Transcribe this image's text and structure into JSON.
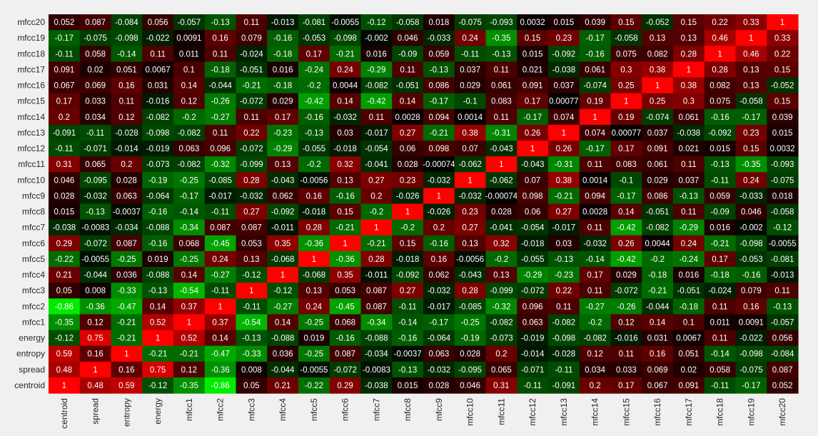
{
  "chart_data": {
    "type": "heatmap",
    "title": "",
    "colormap": {
      "negative": "#00ff00",
      "zero": "#000000",
      "positive": "#ff0000"
    },
    "value_limits": [
      -1,
      1
    ],
    "x_labels": [
      "centroid",
      "spread",
      "entropy",
      "energy",
      "mfcc1",
      "mfcc2",
      "mfcc3",
      "mfcc4",
      "mfcc5",
      "mfcc6",
      "mfcc7",
      "mfcc8",
      "mfcc9",
      "mfcc10",
      "mfcc11",
      "mfcc12",
      "mfcc13",
      "mfcc14",
      "mfcc15",
      "mfcc16",
      "mfcc17",
      "mfcc18",
      "mfcc19",
      "mfcc20"
    ],
    "y_labels": [
      "mfcc20",
      "mfcc19",
      "mfcc18",
      "mfcc17",
      "mfcc16",
      "mfcc15",
      "mfcc14",
      "mfcc13",
      "mfcc12",
      "mfcc11",
      "mfcc10",
      "mfcc9",
      "mfcc8",
      "mfcc7",
      "mfcc6",
      "mfcc5",
      "mfcc4",
      "mfcc3",
      "mfcc2",
      "mfcc1",
      "energy",
      "entropy",
      "spread",
      "centroid"
    ],
    "values": [
      [
        "0.052",
        "0.087",
        "-0.084",
        "0.056",
        "-0.057",
        "-0.13",
        "0.11",
        "-0.013",
        "-0.081",
        "-0.0055",
        "-0.12",
        "-0.058",
        "0.018",
        "-0.075",
        "-0.093",
        "0.0032",
        "0.015",
        "0.039",
        "0.15",
        "-0.052",
        "0.15",
        "0.22",
        "0.33",
        "1"
      ],
      [
        "-0.17",
        "-0.075",
        "-0.098",
        "-0.022",
        "0.0091",
        "0.16",
        "0.079",
        "-0.16",
        "-0.053",
        "-0.098",
        "-0.002",
        "0.046",
        "-0.033",
        "0.24",
        "-0.35",
        "0.15",
        "0.23",
        "-0.17",
        "-0.058",
        "0.13",
        "0.13",
        "0.46",
        "1",
        "0.33"
      ],
      [
        "-0.11",
        "0.058",
        "-0.14",
        "0.11",
        "0.011",
        "0.11",
        "-0.024",
        "-0.18",
        "0.17",
        "-0.21",
        "0.016",
        "-0.09",
        "0.059",
        "-0.11",
        "-0.13",
        "0.015",
        "-0.092",
        "-0.16",
        "0.075",
        "0.082",
        "0.28",
        "1",
        "0.46",
        "0.22"
      ],
      [
        "0.091",
        "0.02",
        "0.051",
        "0.0067",
        "0.1",
        "-0.18",
        "-0.051",
        "0.016",
        "-0.24",
        "0.24",
        "-0.29",
        "0.11",
        "-0.13",
        "0.037",
        "0.11",
        "0.021",
        "-0.038",
        "0.061",
        "0.3",
        "0.38",
        "1",
        "0.28",
        "0.13",
        "0.15"
      ],
      [
        "0.067",
        "0.069",
        "0.16",
        "0.031",
        "0.14",
        "-0.044",
        "-0.21",
        "-0.18",
        "-0.2",
        "0.0044",
        "-0.082",
        "-0.051",
        "0.086",
        "0.029",
        "0.061",
        "0.091",
        "0.037",
        "-0.074",
        "0.25",
        "1",
        "0.38",
        "0.082",
        "0.13",
        "-0.052"
      ],
      [
        "0.17",
        "0.033",
        "0.11",
        "-0.016",
        "0.12",
        "-0.26",
        "-0.072",
        "0.029",
        "-0.42",
        "0.14",
        "-0.42",
        "0.14",
        "-0.17",
        "-0.1",
        "0.083",
        "0.17",
        "0.00077",
        "0.19",
        "1",
        "0.25",
        "0.3",
        "0.075",
        "-0.058",
        "0.15"
      ],
      [
        "0.2",
        "0.034",
        "0.12",
        "-0.082",
        "-0.2",
        "-0.27",
        "0.11",
        "0.17",
        "-0.16",
        "-0.032",
        "0.11",
        "0.0028",
        "0.094",
        "0.0014",
        "0.11",
        "-0.17",
        "0.074",
        "1",
        "0.19",
        "-0.074",
        "0.061",
        "-0.16",
        "-0.17",
        "0.039"
      ],
      [
        "-0.091",
        "-0.11",
        "-0.028",
        "-0.098",
        "-0.082",
        "0.11",
        "0.22",
        "-0.23",
        "-0.13",
        "0.03",
        "-0.017",
        "0.27",
        "-0.21",
        "0.38",
        "-0.31",
        "0.26",
        "1",
        "0.074",
        "0.00077",
        "0.037",
        "-0.038",
        "-0.092",
        "0.23",
        "0.015"
      ],
      [
        "-0.11",
        "-0.071",
        "-0.014",
        "-0.019",
        "0.063",
        "0.096",
        "-0.072",
        "-0.29",
        "-0.055",
        "-0.018",
        "-0.054",
        "0.06",
        "0.098",
        "0.07",
        "-0.043",
        "1",
        "0.26",
        "-0.17",
        "0.17",
        "0.091",
        "0.021",
        "0.015",
        "0.15",
        "0.0032"
      ],
      [
        "0.31",
        "0.065",
        "0.2",
        "-0.073",
        "-0.082",
        "-0.32",
        "-0.099",
        "0.13",
        "-0.2",
        "0.32",
        "-0.041",
        "0.028",
        "-0.00074",
        "-0.062",
        "1",
        "-0.043",
        "-0.31",
        "0.11",
        "0.083",
        "0.061",
        "0.11",
        "-0.13",
        "-0.35",
        "-0.093"
      ],
      [
        "0.046",
        "-0.095",
        "0.028",
        "-0.19",
        "-0.25",
        "-0.085",
        "0.28",
        "-0.043",
        "-0.0056",
        "0.13",
        "0.27",
        "0.23",
        "-0.032",
        "1",
        "-0.062",
        "0.07",
        "0.38",
        "0.0014",
        "-0.1",
        "0.029",
        "0.037",
        "-0.11",
        "0.24",
        "-0.075"
      ],
      [
        "0.028",
        "-0.032",
        "0.063",
        "-0.064",
        "-0.17",
        "-0.017",
        "-0.032",
        "0.062",
        "0.16",
        "-0.16",
        "0.2",
        "-0.026",
        "1",
        "-0.032",
        "-0.00074",
        "0.098",
        "-0.21",
        "0.094",
        "-0.17",
        "0.086",
        "-0.13",
        "0.059",
        "-0.033",
        "0.018"
      ],
      [
        "0.015",
        "-0.13",
        "-0.0037",
        "-0.16",
        "-0.14",
        "-0.11",
        "0.27",
        "-0.092",
        "-0.018",
        "0.15",
        "-0.2",
        "1",
        "-0.026",
        "0.23",
        "0.028",
        "0.06",
        "0.27",
        "0.0028",
        "0.14",
        "-0.051",
        "0.11",
        "-0.09",
        "0.046",
        "-0.058"
      ],
      [
        "-0.038",
        "-0.0083",
        "-0.034",
        "-0.088",
        "-0.34",
        "0.087",
        "0.087",
        "-0.011",
        "0.28",
        "-0.21",
        "1",
        "-0.2",
        "0.2",
        "0.27",
        "-0.041",
        "-0.054",
        "-0.017",
        "0.11",
        "-0.42",
        "-0.082",
        "-0.29",
        "0.016",
        "-0.002",
        "-0.12"
      ],
      [
        "0.29",
        "-0.072",
        "0.087",
        "-0.16",
        "0.068",
        "-0.45",
        "0.053",
        "0.35",
        "-0.36",
        "1",
        "-0.21",
        "0.15",
        "-0.16",
        "0.13",
        "0.32",
        "-0.018",
        "0.03",
        "-0.032",
        "0.26",
        "0.0044",
        "0.24",
        "-0.21",
        "-0.098",
        "-0.0055"
      ],
      [
        "-0.22",
        "-0.0055",
        "-0.25",
        "0.019",
        "-0.25",
        "0.24",
        "0.13",
        "-0.068",
        "1",
        "-0.36",
        "0.28",
        "-0.018",
        "0.16",
        "-0.0056",
        "-0.2",
        "-0.055",
        "-0.13",
        "-0.14",
        "-0.42",
        "-0.2",
        "-0.24",
        "0.17",
        "-0.053",
        "-0.081"
      ],
      [
        "0.21",
        "-0.044",
        "0.036",
        "-0.088",
        "0.14",
        "-0.27",
        "-0.12",
        "1",
        "-0.068",
        "0.35",
        "-0.011",
        "-0.092",
        "0.062",
        "-0.043",
        "0.13",
        "-0.29",
        "-0.23",
        "0.17",
        "0.029",
        "-0.18",
        "0.016",
        "-0.18",
        "-0.16",
        "-0.013"
      ],
      [
        "0.05",
        "0.008",
        "-0.33",
        "-0.13",
        "-0.54",
        "-0.11",
        "1",
        "-0.12",
        "0.13",
        "0.053",
        "0.087",
        "0.27",
        "-0.032",
        "0.28",
        "-0.099",
        "-0.072",
        "0.22",
        "0.11",
        "-0.072",
        "-0.21",
        "-0.051",
        "-0.024",
        "0.079",
        "0.11"
      ],
      [
        "-0.86",
        "-0.36",
        "-0.47",
        "0.14",
        "0.37",
        "1",
        "-0.11",
        "-0.27",
        "0.24",
        "-0.45",
        "0.087",
        "-0.11",
        "-0.017",
        "-0.085",
        "-0.32",
        "0.096",
        "0.11",
        "-0.27",
        "-0.26",
        "-0.044",
        "-0.18",
        "0.11",
        "0.16",
        "-0.13"
      ],
      [
        "-0.35",
        "0.12",
        "-0.21",
        "0.52",
        "1",
        "0.37",
        "-0.54",
        "0.14",
        "-0.25",
        "0.068",
        "-0.34",
        "-0.14",
        "-0.17",
        "-0.25",
        "-0.082",
        "0.063",
        "-0.082",
        "-0.2",
        "0.12",
        "0.14",
        "0.1",
        "0.011",
        "0.0091",
        "-0.057"
      ],
      [
        "-0.12",
        "0.75",
        "-0.21",
        "1",
        "0.52",
        "0.14",
        "-0.13",
        "-0.088",
        "0.019",
        "-0.16",
        "-0.088",
        "-0.16",
        "-0.064",
        "-0.19",
        "-0.073",
        "-0.019",
        "-0.098",
        "-0.082",
        "-0.016",
        "0.031",
        "0.0067",
        "0.11",
        "-0.022",
        "0.056"
      ],
      [
        "0.59",
        "0.16",
        "1",
        "-0.21",
        "-0.21",
        "-0.47",
        "-0.33",
        "0.036",
        "-0.25",
        "0.087",
        "-0.034",
        "-0.0037",
        "0.063",
        "0.028",
        "0.2",
        "-0.014",
        "-0.028",
        "0.12",
        "0.11",
        "0.16",
        "0.051",
        "-0.14",
        "-0.098",
        "-0.084"
      ],
      [
        "0.48",
        "1",
        "0.16",
        "0.75",
        "0.12",
        "-0.36",
        "0.008",
        "-0.044",
        "-0.0055",
        "-0.072",
        "-0.0083",
        "-0.13",
        "-0.032",
        "-0.095",
        "0.065",
        "-0.071",
        "-0.11",
        "0.034",
        "0.033",
        "0.069",
        "0.02",
        "0.058",
        "-0.075",
        "0.087"
      ],
      [
        "1",
        "0.48",
        "0.59",
        "-0.12",
        "-0.35",
        "-0.86",
        "0.05",
        "0.21",
        "-0.22",
        "0.29",
        "-0.038",
        "0.015",
        "0.028",
        "0.046",
        "0.31",
        "-0.11",
        "-0.091",
        "0.2",
        "0.17",
        "0.067",
        "0.091",
        "-0.11",
        "-0.17",
        "0.052"
      ]
    ]
  }
}
